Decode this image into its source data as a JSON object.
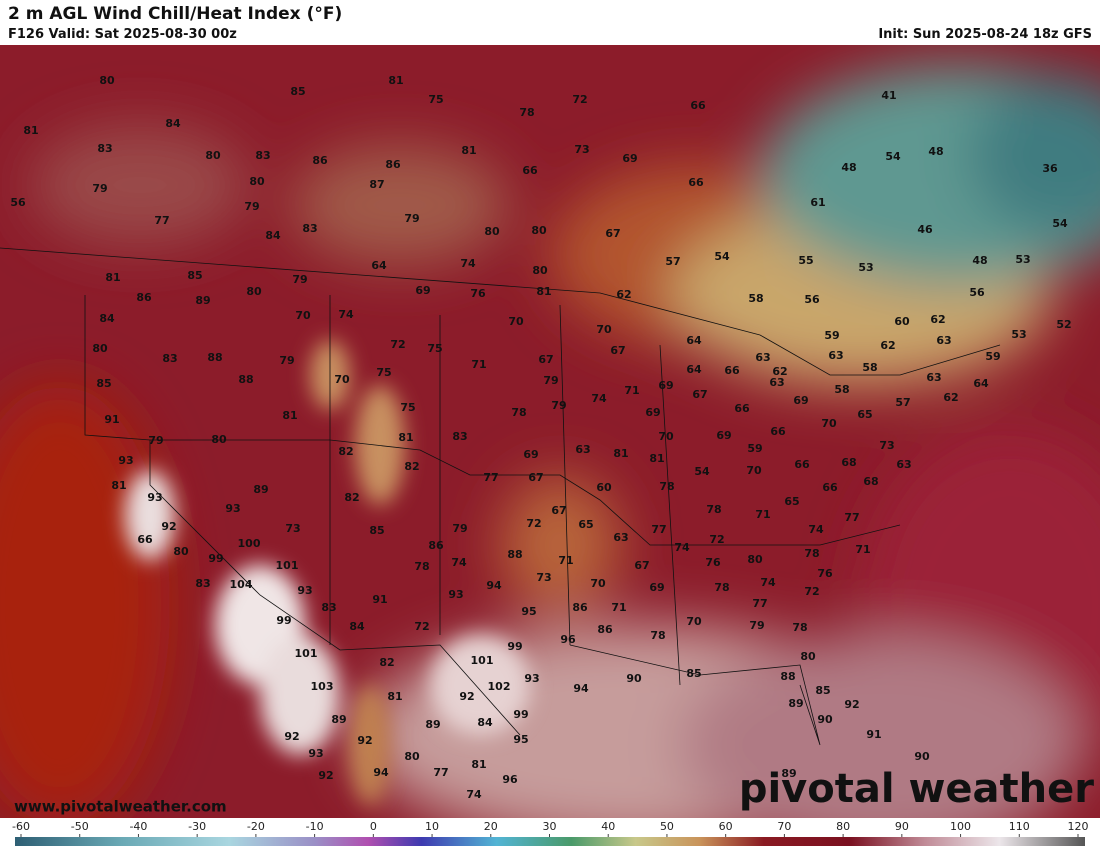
{
  "header": {
    "title": "2 m AGL Wind Chill/Heat Index (°F)",
    "subtitle": "F126 Valid: Sat 2025-08-30 00z",
    "init": "Init: Sun 2025-08-24 18z GFS"
  },
  "map": {
    "stations": [
      80,
      81,
      75,
      85,
      72,
      66,
      41,
      81,
      84,
      78,
      83,
      80,
      83,
      86,
      86,
      81,
      73,
      69,
      54,
      48,
      48,
      36,
      66,
      79,
      80,
      87,
      66,
      56,
      77,
      79,
      61,
      83,
      84,
      79,
      80,
      80,
      67,
      46,
      54,
      81,
      85,
      79,
      64,
      74,
      80,
      57,
      54,
      55,
      53,
      48,
      53,
      86,
      89,
      80,
      69,
      76,
      81,
      62,
      58,
      56,
      56,
      84,
      70,
      74,
      70,
      70,
      60,
      62,
      53,
      52,
      80,
      83,
      88,
      79,
      72,
      75,
      67,
      67,
      64,
      59,
      63,
      62,
      63,
      63,
      66,
      64,
      58,
      59,
      85,
      88,
      70,
      75,
      71,
      79,
      71,
      69,
      67,
      62,
      63,
      58,
      63,
      64,
      57,
      62,
      91,
      81,
      75,
      78,
      79,
      74,
      69,
      66,
      69,
      65,
      70,
      79,
      80,
      81,
      83,
      70,
      69,
      66,
      73,
      93,
      82,
      82,
      69,
      63,
      81,
      81,
      59,
      70,
      66,
      68,
      63,
      81,
      77,
      67,
      54,
      68,
      89,
      60,
      78,
      66,
      93,
      82,
      93,
      65,
      78,
      71,
      67,
      92,
      73,
      85,
      79,
      72,
      65,
      63,
      77,
      74,
      77,
      66,
      100,
      86,
      74,
      72,
      80,
      78,
      71,
      80,
      99,
      101,
      74,
      88,
      71,
      67,
      76,
      78,
      76,
      83,
      104,
      93,
      73,
      94,
      70,
      69,
      78,
      74,
      72,
      91,
      93,
      77,
      83,
      95,
      86,
      71,
      99,
      84,
      72,
      96,
      86,
      78,
      70,
      79,
      78,
      99,
      101,
      82,
      101,
      80,
      85,
      90,
      94,
      93,
      88,
      103,
      102,
      85,
      81,
      92,
      89,
      92,
      99,
      90,
      89,
      89,
      84,
      92,
      92,
      95,
      91,
      93,
      80,
      90,
      81,
      92,
      94,
      77,
      96,
      89,
      74
    ],
    "watermark": "www.pivotalweather.com",
    "logo": "pivotal weather"
  },
  "colorbar": {
    "ticks": [
      -60,
      -50,
      -40,
      -30,
      -20,
      -10,
      0,
      10,
      20,
      30,
      40,
      50,
      60,
      70,
      80,
      90,
      100,
      110,
      120
    ]
  }
}
